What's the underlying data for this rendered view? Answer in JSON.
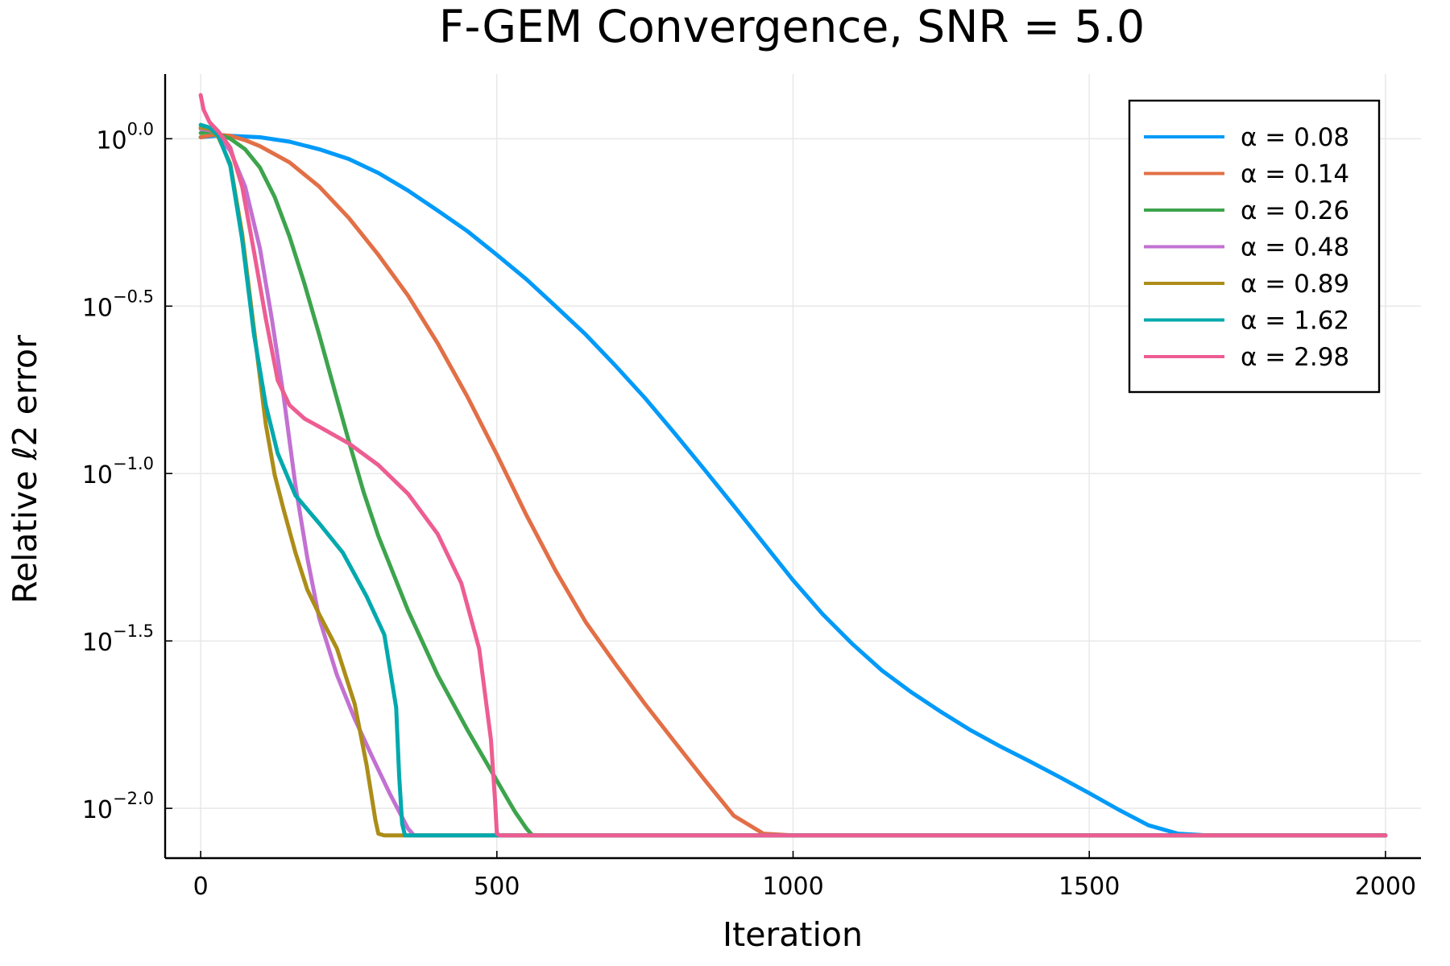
{
  "chart_data": {
    "type": "line",
    "title": "F-GEM Convergence, SNR = 5.0",
    "xlabel": "Iteration",
    "ylabel": "Relative ℓ2 error",
    "xscale": "linear",
    "yscale": "log10",
    "xlim": [
      -60,
      2060
    ],
    "ylim": [
      0.0071,
      1.56
    ],
    "xticks": [
      {
        "value": 0,
        "label": "0"
      },
      {
        "value": 500,
        "label": "500"
      },
      {
        "value": 1000,
        "label": "1000"
      },
      {
        "value": 1500,
        "label": "1500"
      },
      {
        "value": 2000,
        "label": "2000"
      }
    ],
    "yticks": [
      {
        "value": 1.0,
        "base": "10",
        "exp": "0.0"
      },
      {
        "value": 0.3162,
        "base": "10",
        "exp": "−0.5"
      },
      {
        "value": 0.1,
        "base": "10",
        "exp": "−1.0"
      },
      {
        "value": 0.03162,
        "base": "10",
        "exp": "−1.5"
      },
      {
        "value": 0.01,
        "base": "10",
        "exp": "−2.0"
      }
    ],
    "grid": true,
    "legend_position": "top-right",
    "series": [
      {
        "name": "α = 0.08",
        "color": "#009AF9",
        "x": [
          0,
          25,
          50,
          100,
          150,
          200,
          250,
          300,
          350,
          400,
          450,
          500,
          550,
          600,
          650,
          700,
          750,
          800,
          850,
          900,
          950,
          1000,
          1050,
          1100,
          1150,
          1200,
          1250,
          1300,
          1350,
          1400,
          1450,
          1500,
          1550,
          1600,
          1650,
          1700,
          1800,
          1900,
          2000
        ],
        "y": [
          1.01,
          1.02,
          1.02,
          1.01,
          0.98,
          0.93,
          0.87,
          0.79,
          0.7,
          0.61,
          0.53,
          0.45,
          0.38,
          0.315,
          0.26,
          0.21,
          0.168,
          0.132,
          0.103,
          0.08,
          0.062,
          0.048,
          0.038,
          0.031,
          0.0258,
          0.0222,
          0.0194,
          0.0171,
          0.0153,
          0.0138,
          0.0124,
          0.0111,
          0.0099,
          0.0089,
          0.0084,
          0.0083,
          0.0083,
          0.0083,
          0.0083
        ]
      },
      {
        "name": "α = 0.14",
        "color": "#E26F46",
        "x": [
          0,
          25,
          50,
          75,
          100,
          150,
          200,
          250,
          300,
          350,
          400,
          450,
          500,
          550,
          600,
          650,
          700,
          750,
          800,
          850,
          900,
          950,
          1000,
          1500,
          2000
        ],
        "y": [
          1.01,
          1.03,
          1.02,
          0.99,
          0.95,
          0.85,
          0.72,
          0.58,
          0.45,
          0.34,
          0.245,
          0.17,
          0.114,
          0.075,
          0.051,
          0.036,
          0.027,
          0.0205,
          0.0158,
          0.0122,
          0.0095,
          0.0084,
          0.0083,
          0.0083,
          0.0083
        ]
      },
      {
        "name": "α = 0.26",
        "color": "#3DA44D",
        "x": [
          0,
          15,
          30,
          50,
          75,
          100,
          125,
          150,
          175,
          200,
          225,
          250,
          275,
          300,
          350,
          400,
          450,
          500,
          530,
          550,
          560,
          600,
          1000,
          1500,
          2000
        ],
        "y": [
          1.04,
          1.05,
          1.03,
          1.0,
          0.93,
          0.82,
          0.67,
          0.51,
          0.37,
          0.26,
          0.18,
          0.125,
          0.088,
          0.065,
          0.039,
          0.025,
          0.0172,
          0.0121,
          0.0098,
          0.0087,
          0.0083,
          0.0083,
          0.0083,
          0.0083,
          0.0083
        ]
      },
      {
        "name": "α = 0.48",
        "color": "#C271D2",
        "x": [
          0,
          15,
          30,
          50,
          75,
          100,
          120,
          140,
          160,
          180,
          200,
          230,
          260,
          290,
          320,
          340,
          350,
          360,
          400,
          1000,
          2000
        ],
        "y": [
          1.07,
          1.06,
          1.02,
          0.92,
          0.72,
          0.47,
          0.29,
          0.17,
          0.092,
          0.056,
          0.037,
          0.025,
          0.0185,
          0.0142,
          0.011,
          0.0094,
          0.0087,
          0.0083,
          0.0083,
          0.0083,
          0.0083
        ]
      },
      {
        "name": "α = 0.89",
        "color": "#AC8D18",
        "x": [
          0,
          15,
          30,
          50,
          70,
          90,
          110,
          125,
          140,
          160,
          180,
          200,
          230,
          260,
          280,
          295,
          300,
          310,
          350,
          1000,
          2000
        ],
        "y": [
          1.08,
          1.07,
          1.01,
          0.84,
          0.52,
          0.27,
          0.14,
          0.099,
          0.078,
          0.058,
          0.045,
          0.038,
          0.03,
          0.0205,
          0.0135,
          0.0092,
          0.0084,
          0.0083,
          0.0083,
          0.0083,
          0.0083
        ]
      },
      {
        "name": "α = 1.62",
        "color": "#00A9AD",
        "x": [
          0,
          15,
          30,
          50,
          70,
          90,
          110,
          130,
          160,
          200,
          240,
          280,
          310,
          330,
          335,
          340,
          345,
          360,
          1000,
          2000
        ],
        "y": [
          1.1,
          1.08,
          1.02,
          0.83,
          0.5,
          0.26,
          0.16,
          0.115,
          0.086,
          0.071,
          0.058,
          0.043,
          0.033,
          0.02,
          0.0125,
          0.009,
          0.0083,
          0.0083,
          0.0083,
          0.0083
        ]
      },
      {
        "name": "α = 2.98",
        "color": "#ED5D92",
        "x": [
          0,
          5,
          15,
          30,
          50,
          70,
          90,
          110,
          130,
          150,
          175,
          200,
          250,
          300,
          350,
          400,
          440,
          470,
          490,
          497,
          500,
          505,
          1000,
          2000
        ],
        "y": [
          1.35,
          1.22,
          1.12,
          1.05,
          0.94,
          0.72,
          0.46,
          0.29,
          0.19,
          0.16,
          0.146,
          0.138,
          0.123,
          0.106,
          0.087,
          0.066,
          0.047,
          0.03,
          0.016,
          0.0105,
          0.0084,
          0.0083,
          0.0083,
          0.0083
        ]
      }
    ]
  }
}
